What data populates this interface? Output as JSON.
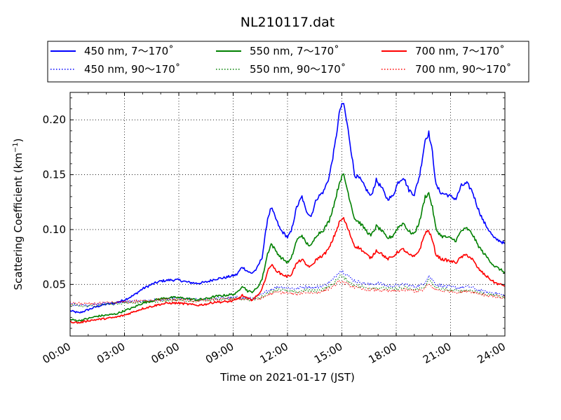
{
  "chart_data": {
    "type": "line",
    "title": "NL210117.dat",
    "xlabel": "Time on 2021-01-17 (JST)",
    "ylabel": "Scattering Coefficient (km⁻¹)",
    "ylabel_base": "Scattering Coefficient (km",
    "ylabel_sup": "−1",
    "ylabel_close": ")",
    "xlim_hours": [
      0,
      24
    ],
    "ylim": [
      0.003,
      0.225
    ],
    "grid": true,
    "legend_position": "top, above plot",
    "x_ticks": [
      {
        "hour": 0,
        "label": "00:00"
      },
      {
        "hour": 3,
        "label": "03:00"
      },
      {
        "hour": 6,
        "label": "06:00"
      },
      {
        "hour": 9,
        "label": "09:00"
      },
      {
        "hour": 12,
        "label": "12:00"
      },
      {
        "hour": 15,
        "label": "15:00"
      },
      {
        "hour": 18,
        "label": "18:00"
      },
      {
        "hour": 21,
        "label": "21:00"
      },
      {
        "hour": 24,
        "label": "24:00"
      }
    ],
    "y_ticks": [
      {
        "value": 0.05,
        "label": "0.05"
      },
      {
        "value": 0.1,
        "label": "0.10"
      },
      {
        "value": 0.15,
        "label": "0.15"
      },
      {
        "value": 0.2,
        "label": "0.20"
      }
    ],
    "series": [
      {
        "name": "450 nm, 7～170˚",
        "color": "#0000ff",
        "style": "solid",
        "x": [
          0,
          0.5,
          1,
          1.5,
          2,
          2.5,
          3,
          3.5,
          4,
          4.5,
          5,
          5.5,
          6,
          6.5,
          7,
          7.5,
          8,
          8.5,
          9,
          9.2,
          9.5,
          9.8,
          10,
          10.3,
          10.6,
          10.9,
          11.1,
          11.3,
          11.6,
          12,
          12.2,
          12.5,
          12.8,
          13,
          13.3,
          13.6,
          14,
          14.3,
          14.6,
          14.9,
          15.1,
          15.4,
          15.7,
          16,
          16.3,
          16.6,
          16.9,
          17.2,
          17.5,
          17.8,
          18.1,
          18.4,
          18.7,
          19,
          19.3,
          19.6,
          19.8,
          20,
          20.2,
          20.5,
          20.8,
          21,
          21.3,
          21.6,
          21.9,
          22.2,
          22.5,
          22.8,
          23.1,
          23.4,
          23.7,
          24
        ],
        "y": [
          0.026,
          0.024,
          0.027,
          0.03,
          0.032,
          0.033,
          0.036,
          0.04,
          0.046,
          0.05,
          0.053,
          0.054,
          0.054,
          0.052,
          0.051,
          0.052,
          0.055,
          0.056,
          0.058,
          0.059,
          0.066,
          0.062,
          0.06,
          0.064,
          0.075,
          0.11,
          0.12,
          0.112,
          0.1,
          0.093,
          0.098,
          0.12,
          0.13,
          0.118,
          0.112,
          0.128,
          0.135,
          0.148,
          0.175,
          0.21,
          0.215,
          0.185,
          0.15,
          0.146,
          0.138,
          0.13,
          0.145,
          0.138,
          0.128,
          0.13,
          0.143,
          0.148,
          0.136,
          0.132,
          0.15,
          0.182,
          0.188,
          0.17,
          0.14,
          0.133,
          0.132,
          0.13,
          0.128,
          0.14,
          0.142,
          0.135,
          0.12,
          0.108,
          0.1,
          0.092,
          0.09,
          0.087
        ]
      },
      {
        "name": "450 nm, 90～170˚",
        "color": "#0000ff",
        "style": "dotted",
        "x": [
          0,
          1,
          2,
          3,
          4,
          5,
          6,
          7,
          8,
          9,
          9.5,
          10,
          10.5,
          11,
          11.5,
          12,
          12.5,
          13,
          13.5,
          14,
          14.5,
          14.9,
          15.2,
          15.6,
          16,
          16.5,
          17,
          17.5,
          18,
          18.5,
          19,
          19.5,
          19.8,
          20.2,
          20.8,
          21.5,
          22,
          22.5,
          23,
          23.5,
          24
        ],
        "y": [
          0.032,
          0.031,
          0.033,
          0.034,
          0.035,
          0.036,
          0.037,
          0.036,
          0.037,
          0.038,
          0.038,
          0.037,
          0.04,
          0.045,
          0.048,
          0.047,
          0.046,
          0.048,
          0.047,
          0.049,
          0.054,
          0.063,
          0.06,
          0.054,
          0.052,
          0.05,
          0.051,
          0.049,
          0.049,
          0.05,
          0.048,
          0.05,
          0.058,
          0.05,
          0.048,
          0.047,
          0.048,
          0.045,
          0.043,
          0.042,
          0.04
        ]
      },
      {
        "name": "550 nm, 7～170˚",
        "color": "#008000",
        "style": "solid",
        "x": [
          0,
          0.5,
          1,
          1.5,
          2,
          2.5,
          3,
          3.5,
          4,
          4.5,
          5,
          5.5,
          6,
          6.5,
          7,
          7.5,
          8,
          8.5,
          9,
          9.2,
          9.5,
          9.8,
          10,
          10.3,
          10.6,
          10.9,
          11.1,
          11.3,
          11.6,
          12,
          12.2,
          12.5,
          12.8,
          13,
          13.3,
          13.6,
          14,
          14.3,
          14.6,
          14.9,
          15.1,
          15.4,
          15.7,
          16,
          16.3,
          16.6,
          16.9,
          17.2,
          17.5,
          17.8,
          18.1,
          18.4,
          18.7,
          19,
          19.3,
          19.6,
          19.8,
          20,
          20.2,
          20.5,
          20.8,
          21,
          21.3,
          21.6,
          21.9,
          22.2,
          22.5,
          22.8,
          23.1,
          23.4,
          23.7,
          24
        ],
        "y": [
          0.018,
          0.017,
          0.019,
          0.021,
          0.022,
          0.023,
          0.026,
          0.029,
          0.033,
          0.035,
          0.037,
          0.038,
          0.038,
          0.037,
          0.036,
          0.037,
          0.039,
          0.04,
          0.041,
          0.042,
          0.049,
          0.044,
          0.043,
          0.046,
          0.055,
          0.078,
          0.087,
          0.082,
          0.075,
          0.07,
          0.073,
          0.09,
          0.095,
          0.088,
          0.085,
          0.095,
          0.1,
          0.108,
          0.125,
          0.145,
          0.15,
          0.13,
          0.11,
          0.106,
          0.1,
          0.094,
          0.103,
          0.099,
          0.092,
          0.094,
          0.102,
          0.106,
          0.098,
          0.096,
          0.108,
          0.13,
          0.133,
          0.12,
          0.1,
          0.094,
          0.093,
          0.092,
          0.09,
          0.099,
          0.101,
          0.096,
          0.086,
          0.079,
          0.073,
          0.067,
          0.064,
          0.061
        ]
      },
      {
        "name": "550 nm, 90～170˚",
        "color": "#008000",
        "style": "dotted",
        "x": [
          0,
          1,
          2,
          3,
          4,
          5,
          6,
          7,
          8,
          9,
          9.5,
          10,
          10.5,
          11,
          11.5,
          12,
          12.5,
          13,
          13.5,
          14,
          14.5,
          14.9,
          15.2,
          15.6,
          16,
          16.5,
          17,
          17.5,
          18,
          18.5,
          19,
          19.5,
          19.8,
          20.2,
          20.8,
          21.5,
          22,
          22.5,
          23,
          23.5,
          24
        ],
        "y": [
          0.031,
          0.03,
          0.032,
          0.033,
          0.034,
          0.035,
          0.036,
          0.035,
          0.036,
          0.037,
          0.037,
          0.036,
          0.038,
          0.043,
          0.046,
          0.044,
          0.043,
          0.045,
          0.044,
          0.046,
          0.05,
          0.058,
          0.055,
          0.05,
          0.048,
          0.047,
          0.047,
          0.046,
          0.046,
          0.047,
          0.045,
          0.047,
          0.054,
          0.047,
          0.045,
          0.044,
          0.045,
          0.043,
          0.041,
          0.04,
          0.038
        ]
      },
      {
        "name": "700 nm, 7～170˚",
        "color": "#ff0000",
        "style": "solid",
        "x": [
          0,
          0.5,
          1,
          1.5,
          2,
          2.5,
          3,
          3.5,
          4,
          4.5,
          5,
          5.5,
          6,
          6.5,
          7,
          7.5,
          8,
          8.5,
          9,
          9.2,
          9.5,
          9.8,
          10,
          10.3,
          10.6,
          10.9,
          11.1,
          11.3,
          11.6,
          12,
          12.2,
          12.5,
          12.8,
          13,
          13.3,
          13.6,
          14,
          14.3,
          14.6,
          14.9,
          15.1,
          15.4,
          15.7,
          16,
          16.3,
          16.6,
          16.9,
          17.2,
          17.5,
          17.8,
          18.1,
          18.4,
          18.7,
          19,
          19.3,
          19.6,
          19.8,
          20,
          20.2,
          20.5,
          20.8,
          21,
          21.3,
          21.6,
          21.9,
          22.2,
          22.5,
          22.8,
          23.1,
          23.4,
          23.7,
          24
        ],
        "y": [
          0.016,
          0.015,
          0.017,
          0.018,
          0.019,
          0.02,
          0.022,
          0.025,
          0.028,
          0.03,
          0.032,
          0.033,
          0.033,
          0.032,
          0.031,
          0.032,
          0.034,
          0.034,
          0.035,
          0.036,
          0.04,
          0.037,
          0.036,
          0.039,
          0.046,
          0.062,
          0.068,
          0.064,
          0.06,
          0.057,
          0.059,
          0.069,
          0.073,
          0.068,
          0.066,
          0.073,
          0.077,
          0.083,
          0.095,
          0.108,
          0.11,
          0.098,
          0.085,
          0.083,
          0.078,
          0.074,
          0.081,
          0.078,
          0.073,
          0.075,
          0.08,
          0.082,
          0.077,
          0.075,
          0.082,
          0.097,
          0.099,
          0.09,
          0.077,
          0.073,
          0.072,
          0.071,
          0.07,
          0.075,
          0.077,
          0.073,
          0.065,
          0.06,
          0.056,
          0.052,
          0.05,
          0.049
        ]
      },
      {
        "name": "700 nm, 90～170˚",
        "color": "#ff0000",
        "style": "dotted",
        "x": [
          0,
          1,
          2,
          3,
          4,
          5,
          6,
          7,
          8,
          9,
          9.5,
          10,
          10.5,
          11,
          11.5,
          12,
          12.5,
          13,
          13.5,
          14,
          14.5,
          14.9,
          15.2,
          15.6,
          16,
          16.5,
          17,
          17.5,
          18,
          18.5,
          19,
          19.5,
          19.8,
          20.2,
          20.8,
          21.5,
          22,
          22.5,
          23,
          23.5,
          24
        ],
        "y": [
          0.033,
          0.032,
          0.033,
          0.034,
          0.035,
          0.036,
          0.036,
          0.035,
          0.036,
          0.037,
          0.037,
          0.036,
          0.037,
          0.041,
          0.043,
          0.042,
          0.041,
          0.043,
          0.042,
          0.044,
          0.048,
          0.053,
          0.051,
          0.048,
          0.046,
          0.045,
          0.045,
          0.044,
          0.044,
          0.045,
          0.044,
          0.045,
          0.05,
          0.045,
          0.044,
          0.043,
          0.044,
          0.042,
          0.04,
          0.039,
          0.038
        ]
      }
    ]
  }
}
